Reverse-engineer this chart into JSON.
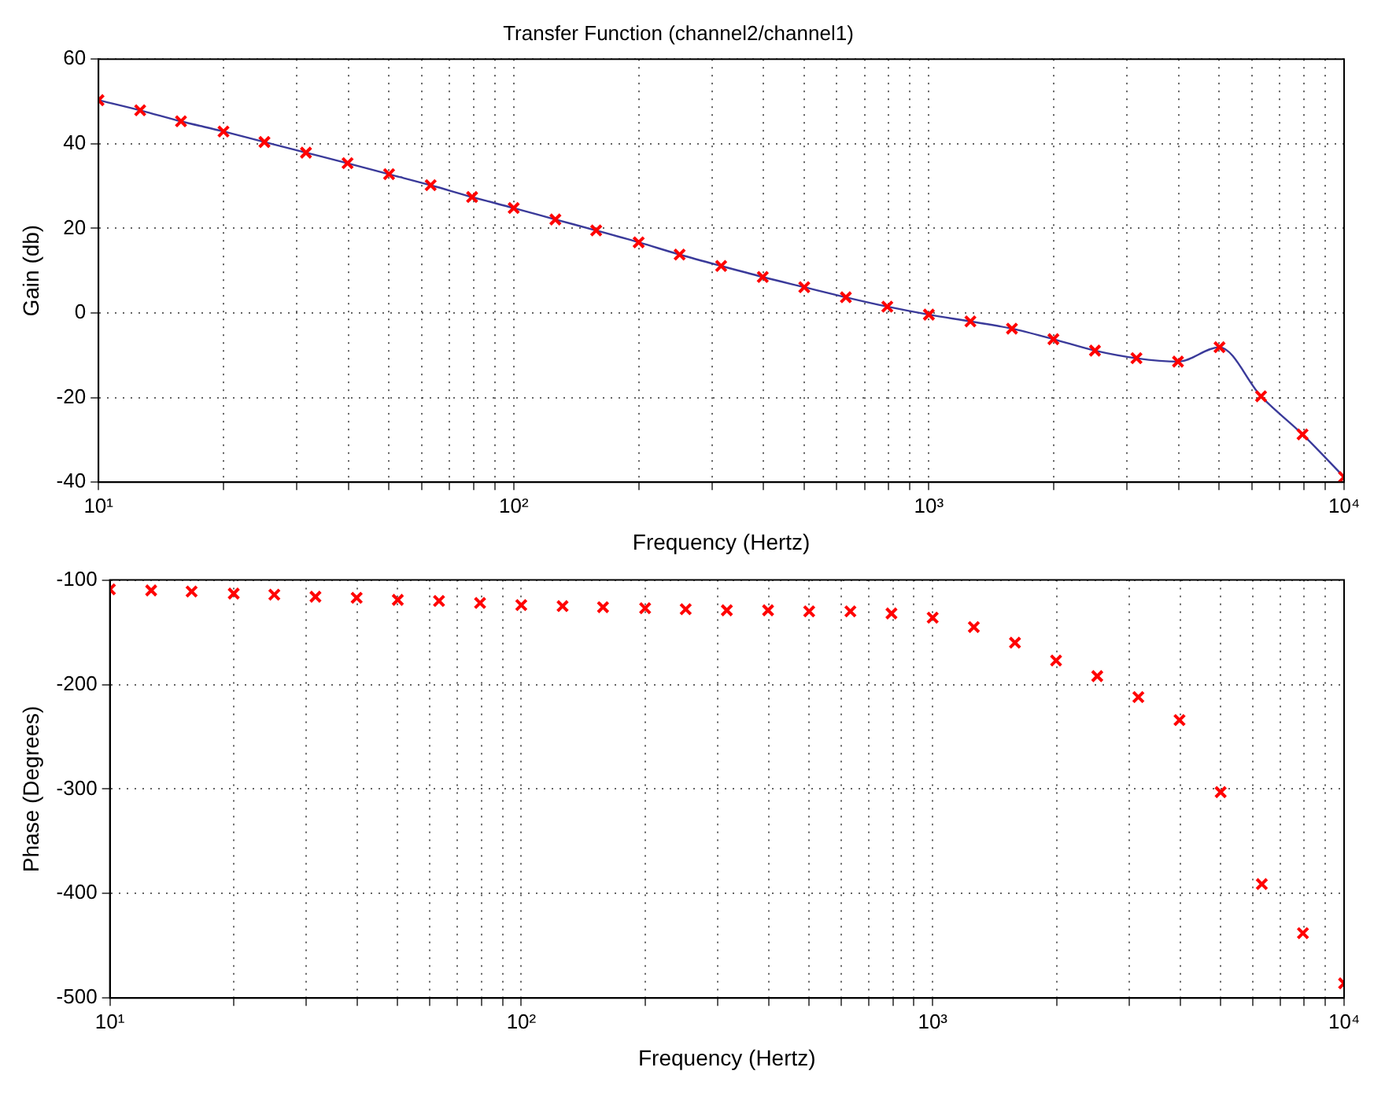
{
  "chart_data": [
    {
      "type": "line",
      "title": "Transfer Function (channel2/channel1)",
      "xlabel": "Frequency (Hertz)",
      "ylabel": "Gain (db)",
      "log": "x",
      "grid": true,
      "legend": false,
      "x": [
        10,
        12.6,
        15.8,
        20,
        25.1,
        31.6,
        39.8,
        50.1,
        63.1,
        79.4,
        100,
        126,
        158,
        200,
        251,
        316,
        398,
        501,
        631,
        794,
        1000,
        1259,
        1585,
        1995,
        2512,
        3162,
        3981,
        5012,
        6310,
        7943,
        10000
      ],
      "xlim": [
        10,
        10000
      ],
      "xticks": [
        {
          "value": 10,
          "label": "10¹"
        },
        {
          "value": 20,
          "label": null
        },
        {
          "value": 30,
          "label": null
        },
        {
          "value": 40,
          "label": null
        },
        {
          "value": 50,
          "label": null
        },
        {
          "value": 60,
          "label": null
        },
        {
          "value": 70,
          "label": null
        },
        {
          "value": 80,
          "label": null
        },
        {
          "value": 90,
          "label": null
        },
        {
          "value": 100,
          "label": "10²"
        },
        {
          "value": 200,
          "label": null
        },
        {
          "value": 300,
          "label": null
        },
        {
          "value": 400,
          "label": null
        },
        {
          "value": 500,
          "label": null
        },
        {
          "value": 600,
          "label": null
        },
        {
          "value": 700,
          "label": null
        },
        {
          "value": 800,
          "label": null
        },
        {
          "value": 900,
          "label": null
        },
        {
          "value": 1000,
          "label": "10³"
        },
        {
          "value": 2000,
          "label": null
        },
        {
          "value": 3000,
          "label": null
        },
        {
          "value": 4000,
          "label": null
        },
        {
          "value": 5000,
          "label": null
        },
        {
          "value": 6000,
          "label": null
        },
        {
          "value": 7000,
          "label": null
        },
        {
          "value": 8000,
          "label": null
        },
        {
          "value": 9000,
          "label": null
        },
        {
          "value": 10000,
          "label": "10⁴"
        }
      ],
      "ylim": [
        -40,
        60
      ],
      "yticks": [
        -40,
        -20,
        0,
        20,
        40,
        60
      ],
      "series": [
        {
          "type": "line",
          "marker": "none",
          "color": "#3a3a9a",
          "values": [
            50.3,
            47.9,
            45.3,
            42.9,
            40.4,
            37.9,
            35.4,
            32.8,
            30.2,
            27.4,
            24.8,
            22.1,
            19.5,
            16.7,
            13.8,
            11.1,
            8.5,
            6.1,
            3.7,
            1.5,
            -0.4,
            -2,
            -3.7,
            -6.2,
            -8.9,
            -10.7,
            -11.5,
            -8.1,
            -19.7,
            -28.7,
            -38.8
          ]
        },
        {
          "type": "scatter",
          "marker": "cross",
          "color": "#ff0000",
          "values": [
            50.3,
            47.9,
            45.3,
            42.9,
            40.4,
            37.9,
            35.4,
            32.8,
            30.2,
            27.4,
            24.8,
            22.1,
            19.5,
            16.7,
            13.8,
            11.1,
            8.5,
            6.1,
            3.7,
            1.5,
            -0.4,
            -2,
            -3.7,
            -6.2,
            -8.9,
            -10.7,
            -11.5,
            -8.1,
            -19.7,
            -28.7,
            -38.8
          ]
        }
      ]
    },
    {
      "type": "scatter",
      "xlabel": "Frequency (Hertz)",
      "ylabel": "Phase (Degrees)",
      "log": "x",
      "grid": true,
      "legend": false,
      "marker": "cross",
      "x": [
        10,
        12.6,
        15.8,
        20,
        25.1,
        31.6,
        39.8,
        50.1,
        63.1,
        79.4,
        100,
        126,
        158,
        200,
        251,
        316,
        398,
        501,
        631,
        794,
        1000,
        1259,
        1585,
        1995,
        2512,
        3162,
        3981,
        5012,
        6310,
        7943,
        10000
      ],
      "xlim": [
        10,
        10000
      ],
      "xticks": [
        {
          "value": 10,
          "label": "10¹"
        },
        {
          "value": 20,
          "label": null
        },
        {
          "value": 30,
          "label": null
        },
        {
          "value": 40,
          "label": null
        },
        {
          "value": 50,
          "label": null
        },
        {
          "value": 60,
          "label": null
        },
        {
          "value": 70,
          "label": null
        },
        {
          "value": 80,
          "label": null
        },
        {
          "value": 90,
          "label": null
        },
        {
          "value": 100,
          "label": "10²"
        },
        {
          "value": 200,
          "label": null
        },
        {
          "value": 300,
          "label": null
        },
        {
          "value": 400,
          "label": null
        },
        {
          "value": 500,
          "label": null
        },
        {
          "value": 600,
          "label": null
        },
        {
          "value": 700,
          "label": null
        },
        {
          "value": 800,
          "label": null
        },
        {
          "value": 900,
          "label": null
        },
        {
          "value": 1000,
          "label": "10³"
        },
        {
          "value": 2000,
          "label": null
        },
        {
          "value": 3000,
          "label": null
        },
        {
          "value": 4000,
          "label": null
        },
        {
          "value": 5000,
          "label": null
        },
        {
          "value": 6000,
          "label": null
        },
        {
          "value": 7000,
          "label": null
        },
        {
          "value": 8000,
          "label": null
        },
        {
          "value": 9000,
          "label": null
        },
        {
          "value": 10000,
          "label": "10⁴"
        }
      ],
      "ylim": [
        -500,
        -100
      ],
      "yticks": [
        -500,
        -400,
        -300,
        -200,
        -100
      ],
      "series": [
        {
          "color": "#ff0000",
          "values": [
            -109,
            -110,
            -111,
            -113,
            -114,
            -116,
            -117,
            -119,
            -120,
            -122,
            -124,
            -125,
            -126,
            -127,
            -128,
            -129,
            -129,
            -130,
            -130,
            -132,
            -136,
            -145,
            -160,
            -177,
            -192,
            -212,
            -234,
            -303,
            -391,
            -438,
            -486
          ]
        }
      ]
    }
  ]
}
